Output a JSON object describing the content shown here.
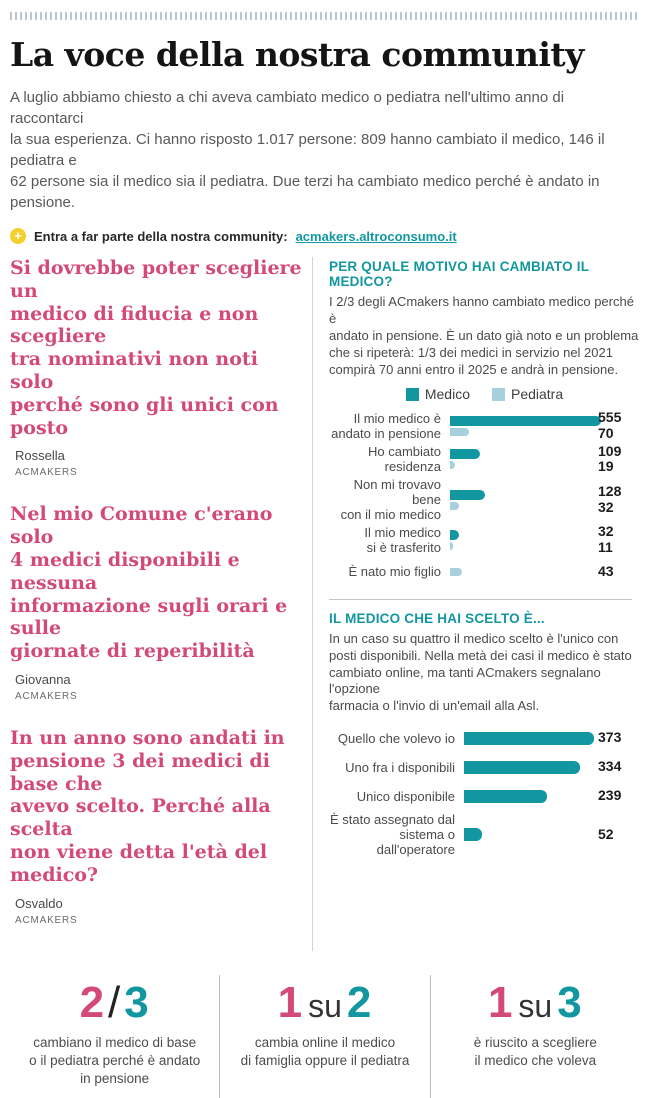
{
  "page": {
    "title": "La voce della nostra community",
    "intro": "A luglio abbiamo chiesto a chi aveva cambiato medico o pediatra nell'ultimo anno di raccontarci\nla sua esperienza. Ci hanno risposto 1.017 persone: 809 hanno cambiato il medico, 146 il pediatra e\n62 persone sia il medico sia il pediatra. Due terzi ha cambiato medico perché è andato in pensione.",
    "cta": {
      "icon": "plus-icon",
      "icon_glyph": "+",
      "label": "Entra a far parte della nostra community:",
      "link": "acmakers.altroconsumo.it"
    }
  },
  "quotes": [
    {
      "text": "Si dovrebbe poter scegliere un\nmedico di fiducia e non scegliere\ntra nominativi non noti solo\nperché sono gli unici con posto",
      "author": "Rossella",
      "role": "ACMAKERS"
    },
    {
      "text": "Nel mio Comune c'erano solo\n4 medici disponibili e nessuna\ninformazione sugli orari e sulle\ngiornate di reperibilità",
      "author": "Giovanna",
      "role": "ACMAKERS"
    },
    {
      "text": "In un anno sono andati in\npensione 3 dei medici di base che\navevo scelto. Perché alla scelta\nnon viene detta l'età del medico?",
      "author": "Osvaldo",
      "role": "ACMAKERS"
    }
  ],
  "chart_data": [
    {
      "type": "bar",
      "orientation": "horizontal",
      "title": "PER QUALE MOTIVO HAI CAMBIATO IL MEDICO?",
      "description": "I 2/3 degli ACmakers hanno cambiato medico perché è\nandato in pensione. È un dato già noto e un problema\nche si ripeterà: 1/3 dei medici in servizio nel 2021\ncompirà 70 anni entro il 2025 e andrà in pensione.",
      "legend": [
        {
          "name": "Medico",
          "color": "#1297a0"
        },
        {
          "name": "Pediatra",
          "color": "#a6d0dd"
        }
      ],
      "legend_position": "top-center",
      "categories": [
        "Il mio medico è\nandato in pensione",
        "Ho cambiato\nresidenza",
        "Non mi trovavo bene\ncon il mio medico",
        "Il mio medico\nsi è trasferito",
        "È nato mio figlio"
      ],
      "series": [
        {
          "name": "Medico",
          "values": [
            555,
            109,
            128,
            32,
            null
          ]
        },
        {
          "name": "Pediatra",
          "values": [
            70,
            19,
            32,
            11,
            43
          ]
        }
      ],
      "xlim": [
        0,
        555
      ],
      "grid": false
    },
    {
      "type": "bar",
      "orientation": "horizontal",
      "title": "IL MEDICO CHE HAI SCELTO È...",
      "description": "In un caso su quattro il medico scelto è l'unico con\nposti disponibili. Nella metà dei casi il medico è stato\ncambiato online, ma tanti ACmakers segnalano l'opzione\nfarmacia o l'invio di un'email alla Asl.",
      "categories": [
        "Quello che volevo io",
        "Uno fra i disponibili",
        "Unico disponibile",
        "È stato assegnato dal\nsistema o dall'operatore"
      ],
      "values": [
        373,
        334,
        239,
        52
      ],
      "bar_color": "#1297a0",
      "xlim": [
        0,
        373
      ],
      "grid": false
    }
  ],
  "stats": [
    {
      "parts": [
        {
          "text": "2",
          "color": "#d2497a"
        },
        {
          "text": "/",
          "color": "#232325",
          "style": "slash"
        },
        {
          "text": "3",
          "color": "#1297a0"
        }
      ],
      "caption": "cambiano il medico di base\no il pediatra perché è andato\nin pensione"
    },
    {
      "parts": [
        {
          "text": "1",
          "color": "#d2497a"
        },
        {
          "text": "su",
          "color": "#333335",
          "style": "su"
        },
        {
          "text": "2",
          "color": "#1297a0"
        }
      ],
      "caption": "cambia online il medico\ndi famiglia oppure il pediatra"
    },
    {
      "parts": [
        {
          "text": "1",
          "color": "#d2497a"
        },
        {
          "text": "su",
          "color": "#333335",
          "style": "su"
        },
        {
          "text": "3",
          "color": "#1297a0"
        }
      ],
      "caption": "è riuscito a scegliere\nil medico che voleva"
    }
  ],
  "colors": {
    "teal": "#1297a0",
    "teal_light": "#a6d0dd",
    "pink": "#d2497a",
    "yellow": "#f2d12e",
    "perforation": "#b9c6d2"
  }
}
